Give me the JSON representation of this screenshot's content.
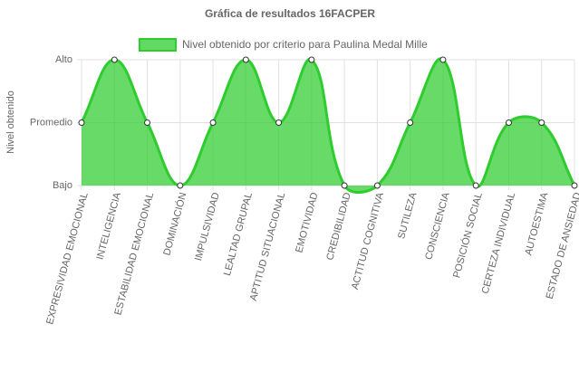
{
  "chart_data": {
    "type": "area",
    "title": "Gráfica de resultados 16FACPER",
    "y_label": "Nivel obtenido",
    "categories": [
      "EXPRESIVIDAD EMOCIONAL",
      "INTELIGENCIA",
      "ESTABILIDAD EMOCIONAL",
      "DOMINACIÓN",
      "IMPULSIVIDAD",
      "LEALTAD GRUPAL",
      "APTITUD SITUACIONAL",
      "EMOTIVIDAD",
      "CREDIBILIDAD",
      "ACTITUD COGNITIVA",
      "SUTILEZA",
      "CONSCIENCIA",
      "POSICIÓN SOCIAL",
      "CERTEZA INDIVIDUAL",
      "AUTOESTIMA",
      "ESTADO DE ANSIEDAD"
    ],
    "series": [
      {
        "name": "Nivel obtenido por criterio para Paulina Medal Mille",
        "color": "#2ecc2e",
        "values": [
          2,
          3,
          2,
          1,
          2,
          3,
          2,
          3,
          1,
          1,
          2,
          3,
          1,
          2,
          2,
          1
        ]
      }
    ],
    "ylim": [
      1,
      3
    ],
    "yticks": [
      {
        "value": 1,
        "label": "Bajo"
      },
      {
        "value": 2,
        "label": "Promedio"
      },
      {
        "value": 3,
        "label": "Alto"
      }
    ],
    "grid": true,
    "legend": "top"
  }
}
